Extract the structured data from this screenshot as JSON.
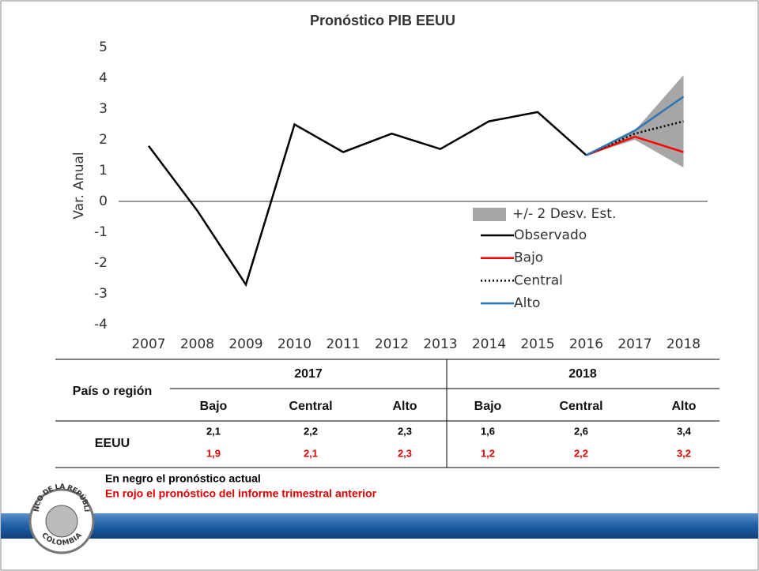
{
  "chart_data": {
    "type": "line",
    "title": "Pronóstico PIB EEUU",
    "ylabel": "Var. Anual",
    "categories": [
      "2007",
      "2008",
      "2009",
      "2010",
      "2011",
      "2012",
      "2013",
      "2014",
      "2015",
      "2016",
      "2017",
      "2018"
    ],
    "ylim": [
      -4,
      5
    ],
    "yticks": [
      -4,
      -3,
      -2,
      -1,
      0,
      1,
      2,
      3,
      4,
      5
    ],
    "band": {
      "name": "+/- 2 Desv. Est.",
      "color": "#a6a6a6",
      "lower": [
        null,
        null,
        null,
        null,
        null,
        null,
        null,
        null,
        null,
        1.5,
        2.0,
        1.1
      ],
      "upper": [
        null,
        null,
        null,
        null,
        null,
        null,
        null,
        null,
        null,
        1.5,
        2.3,
        4.1
      ]
    },
    "series": [
      {
        "name": "Observado",
        "color": "#000000",
        "dash": false,
        "values": [
          1.8,
          -0.3,
          -2.7,
          2.5,
          1.6,
          2.2,
          1.7,
          2.6,
          2.9,
          1.5,
          null,
          null
        ]
      },
      {
        "name": "Bajo",
        "color": "#ff0000",
        "dash": false,
        "values": [
          null,
          null,
          null,
          null,
          null,
          null,
          null,
          null,
          null,
          1.5,
          2.1,
          1.6
        ]
      },
      {
        "name": "Central",
        "color": "#000000",
        "dash": true,
        "values": [
          null,
          null,
          null,
          null,
          null,
          null,
          null,
          null,
          null,
          1.5,
          2.2,
          2.6
        ]
      },
      {
        "name": "Alto",
        "color": "#2e75b6",
        "dash": false,
        "values": [
          null,
          null,
          null,
          null,
          null,
          null,
          null,
          null,
          null,
          1.5,
          2.3,
          3.4
        ]
      }
    ]
  },
  "table": {
    "row_header": "País o región",
    "years": [
      "2017",
      "2018"
    ],
    "scenarios": [
      "Bajo",
      "Central",
      "Alto",
      "Bajo",
      "Central",
      "Alto"
    ],
    "row_label": "EEUU",
    "current": [
      "2,1",
      "2,2",
      "2,3",
      "1,6",
      "2,6",
      "3,4"
    ],
    "previous": [
      "1,9",
      "2,1",
      "2,3",
      "1,2",
      "2,2",
      "3,2"
    ]
  },
  "notes": {
    "current": "En negro el pronóstico actual",
    "previous": "En rojo el pronóstico del informe trimestral anterior"
  },
  "logo": {
    "top": "BANCO DE LA REPÚBLICA",
    "bottom": "COLOMBIA"
  }
}
